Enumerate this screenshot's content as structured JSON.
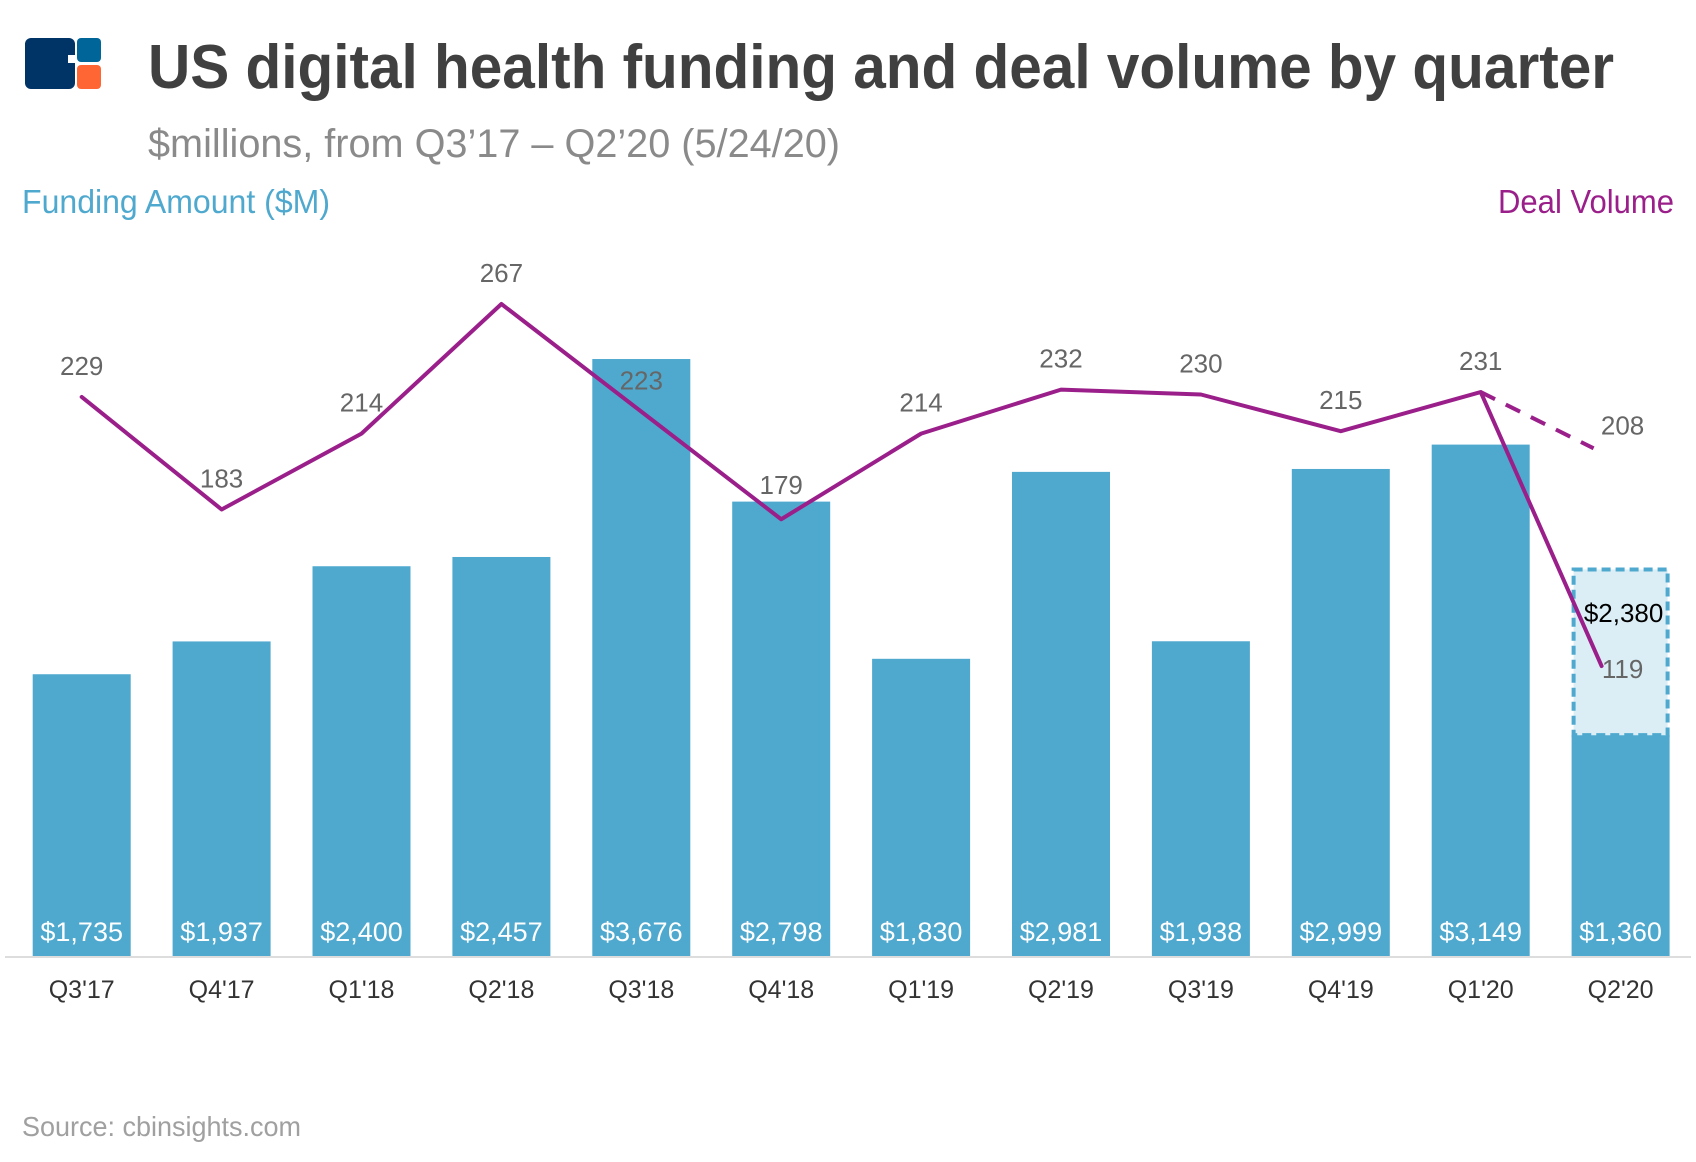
{
  "header": {
    "title": "US digital health funding and deal volume by quarter",
    "subtitle": "$millions, from Q3’17 – Q2’20 (5/24/20)",
    "logo": "cb-insights-logo"
  },
  "source": "Source: cbinsights.com",
  "colors": {
    "bar": "#4fa9cf",
    "projected_fill": "#dbeef6",
    "line": "#9b1f8a",
    "label": "#666666",
    "axis": "#dddddd"
  },
  "chart_data": {
    "type": "bar+line",
    "categories": [
      "Q3'17",
      "Q4'17",
      "Q1'18",
      "Q2'18",
      "Q3'18",
      "Q4'18",
      "Q1'19",
      "Q2'19",
      "Q3'19",
      "Q4'19",
      "Q1'20",
      "Q2'20"
    ],
    "series": [
      {
        "name": "Funding Amount ($M)",
        "type": "bar",
        "axis": "left",
        "values": [
          1735,
          1937,
          2400,
          2457,
          3676,
          2798,
          1830,
          2981,
          1938,
          2999,
          3149,
          1360
        ],
        "labels": [
          "$1,735",
          "$1,937",
          "$2,400",
          "$2,457",
          "$3,676",
          "$2,798",
          "$1,830",
          "$2,981",
          "$1,938",
          "$2,999",
          "$3,149",
          "$1,360"
        ]
      },
      {
        "name": "Deal Volume",
        "type": "line",
        "axis": "right",
        "values": [
          229,
          183,
          214,
          267,
          223,
          179,
          214,
          232,
          230,
          215,
          231,
          119
        ],
        "labels": [
          "229",
          "183",
          "214",
          "267",
          "223",
          "179",
          "214",
          "232",
          "230",
          "215",
          "231",
          "119"
        ]
      }
    ],
    "projection": {
      "category": "Q2'20",
      "funding_value": 2380,
      "funding_label": "$2,380",
      "deal_value": 208,
      "deal_label": "208"
    },
    "left_axis_label": "Funding Amount ($M)",
    "right_axis_label": "Deal Volume",
    "grid": false
  }
}
